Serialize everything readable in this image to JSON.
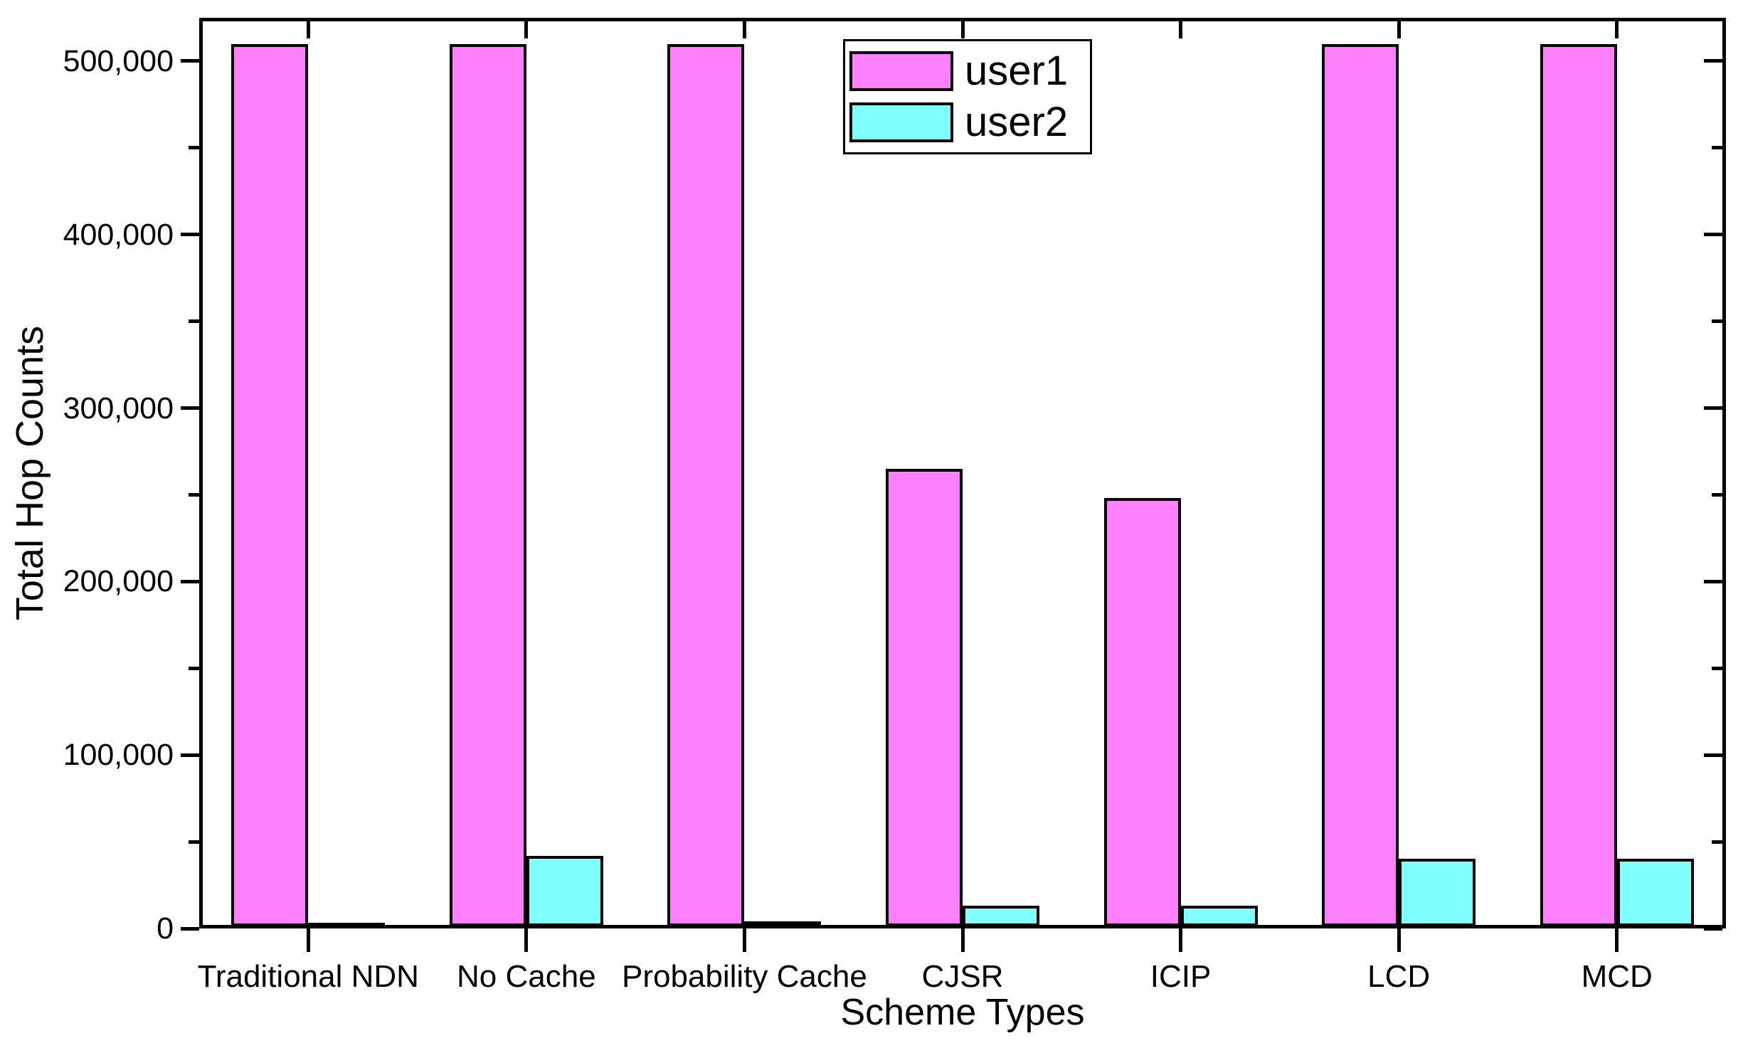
{
  "chart_data": {
    "type": "bar",
    "title": "",
    "xlabel": "Scheme Types",
    "ylabel": "Total Hop Counts",
    "categories": [
      "Traditional NDN",
      "No Cache",
      "Probability Cache",
      "CJSR",
      "ICIP",
      "LCD",
      "MCD"
    ],
    "series": [
      {
        "name": "user1",
        "color": "#ff80ff",
        "values": [
          510000,
          510000,
          510000,
          265000,
          248000,
          510000,
          510000
        ]
      },
      {
        "name": "user2",
        "color": "#80ffff",
        "values": [
          2500,
          42000,
          4000,
          13000,
          13000,
          40000,
          40000
        ]
      }
    ],
    "ylim": [
      0,
      525000
    ],
    "ytick_step": 100000,
    "yminor_step": 50000,
    "ytick_labels": [
      "0",
      "100,000",
      "200,000",
      "300,000",
      "400,000",
      "500,000"
    ],
    "grid": false,
    "legend_position": "top-center-inside",
    "bar_outline_color": "#000000",
    "frame_color": "#000000",
    "background_color": "#ffffff"
  }
}
